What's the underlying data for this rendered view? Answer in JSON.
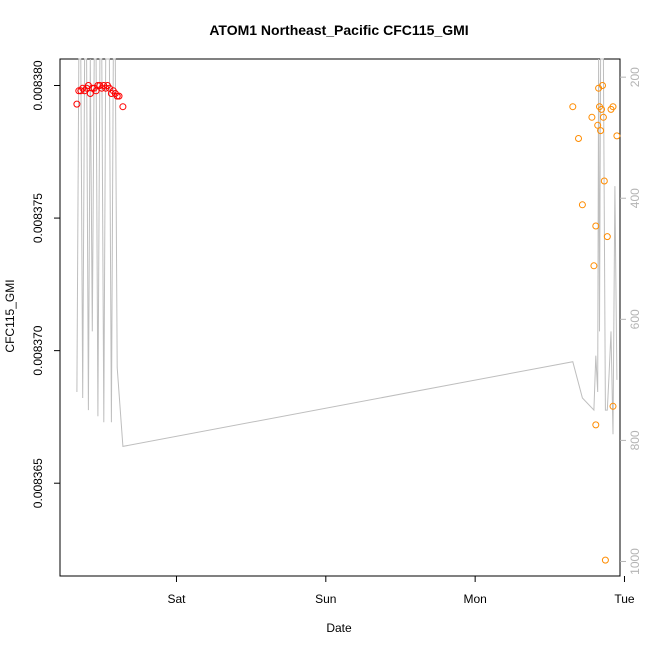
{
  "chart_data": {
    "type": "scatter",
    "title": "ATOM1 Northeast_Pacific CFC115_GMI",
    "xlabel": "Date",
    "ylabel": "CFC115_GMI",
    "x_unit": "days (Fri 00:00 = 0)",
    "xlim": [
      0.22,
      3.97
    ],
    "ylim": [
      0.0083615,
      0.008381
    ],
    "x_ticks": [
      {
        "label": "Sat",
        "value": 1
      },
      {
        "label": "Sun",
        "value": 2
      },
      {
        "label": "Mon",
        "value": 3
      },
      {
        "label": "Tue",
        "value": 4
      }
    ],
    "y_ticks": [
      {
        "label": "0.008365",
        "value": 0.008365
      },
      {
        "label": "0.008370",
        "value": 0.00837
      },
      {
        "label": "0.008375",
        "value": 0.008375
      },
      {
        "label": "0.008380",
        "value": 0.00838
      }
    ],
    "y2lim": [
      1024,
      170
    ],
    "y2_ticks": [
      {
        "label": "200",
        "value": 200
      },
      {
        "label": "400",
        "value": 400
      },
      {
        "label": "600",
        "value": 600
      },
      {
        "label": "800",
        "value": 800
      },
      {
        "label": "1000",
        "value": 1000
      }
    ],
    "series": [
      {
        "color": "#ff0000",
        "marker": "open-circle",
        "points": [
          [
            0.333,
            0.0083793
          ],
          [
            0.346,
            0.0083798
          ],
          [
            0.359,
            0.0083798
          ],
          [
            0.372,
            0.0083799
          ],
          [
            0.385,
            0.0083798
          ],
          [
            0.398,
            0.0083799
          ],
          [
            0.41,
            0.00838
          ],
          [
            0.423,
            0.0083797
          ],
          [
            0.436,
            0.0083799
          ],
          [
            0.449,
            0.0083799
          ],
          [
            0.462,
            0.0083798
          ],
          [
            0.474,
            0.00838
          ],
          [
            0.487,
            0.00838
          ],
          [
            0.5,
            0.0083799
          ],
          [
            0.513,
            0.00838
          ],
          [
            0.526,
            0.0083799
          ],
          [
            0.538,
            0.00838
          ],
          [
            0.551,
            0.0083799
          ],
          [
            0.564,
            0.0083797
          ],
          [
            0.577,
            0.0083798
          ],
          [
            0.59,
            0.0083797
          ],
          [
            0.603,
            0.0083796
          ],
          [
            0.615,
            0.0083796
          ],
          [
            0.641,
            0.0083792
          ]
        ]
      },
      {
        "color": "#ff8c00",
        "marker": "open-circle",
        "points": [
          [
            3.654,
            0.0083792
          ],
          [
            3.692,
            0.008378
          ],
          [
            3.718,
            0.0083755
          ],
          [
            3.782,
            0.0083788
          ],
          [
            3.795,
            0.0083732
          ],
          [
            3.808,
            0.0083747
          ],
          [
            3.821,
            0.0083785
          ],
          [
            3.827,
            0.0083799
          ],
          [
            3.833,
            0.0083792
          ],
          [
            3.84,
            0.0083783
          ],
          [
            3.846,
            0.0083791
          ],
          [
            3.853,
            0.00838
          ],
          [
            3.859,
            0.0083788
          ],
          [
            3.865,
            0.0083764
          ],
          [
            3.872,
            0.0083621
          ],
          [
            3.885,
            0.0083743
          ],
          [
            3.91,
            0.0083791
          ],
          [
            3.923,
            0.0083792
          ],
          [
            3.949,
            0.0083781
          ],
          [
            3.808,
            0.0083672
          ],
          [
            3.923,
            0.0083679
          ]
        ]
      }
    ],
    "secondary_line": {
      "color": "#bebebe",
      "axis": "right",
      "points": [
        [
          0.333,
          720
        ],
        [
          0.346,
          170
        ],
        [
          0.359,
          170
        ],
        [
          0.372,
          730
        ],
        [
          0.385,
          170
        ],
        [
          0.398,
          170
        ],
        [
          0.41,
          750
        ],
        [
          0.423,
          170
        ],
        [
          0.436,
          620
        ],
        [
          0.449,
          170
        ],
        [
          0.462,
          170
        ],
        [
          0.474,
          760
        ],
        [
          0.487,
          170
        ],
        [
          0.5,
          170
        ],
        [
          0.513,
          770
        ],
        [
          0.526,
          170
        ],
        [
          0.538,
          170
        ],
        [
          0.551,
          170
        ],
        [
          0.564,
          770
        ],
        [
          0.577,
          170
        ],
        [
          0.59,
          170
        ],
        [
          0.603,
          680
        ],
        [
          0.641,
          810
        ],
        [
          3.654,
          670
        ],
        [
          3.718,
          730
        ],
        [
          3.795,
          750
        ],
        [
          3.808,
          660
        ],
        [
          3.821,
          720
        ],
        [
          3.827,
          170
        ],
        [
          3.833,
          620
        ],
        [
          3.84,
          170
        ],
        [
          3.846,
          170
        ],
        [
          3.853,
          170
        ],
        [
          3.859,
          170
        ],
        [
          3.872,
          750
        ],
        [
          3.885,
          750
        ],
        [
          3.897,
          690
        ],
        [
          3.91,
          620
        ],
        [
          3.923,
          790
        ],
        [
          3.936,
          380
        ],
        [
          3.949,
          700
        ]
      ]
    }
  }
}
